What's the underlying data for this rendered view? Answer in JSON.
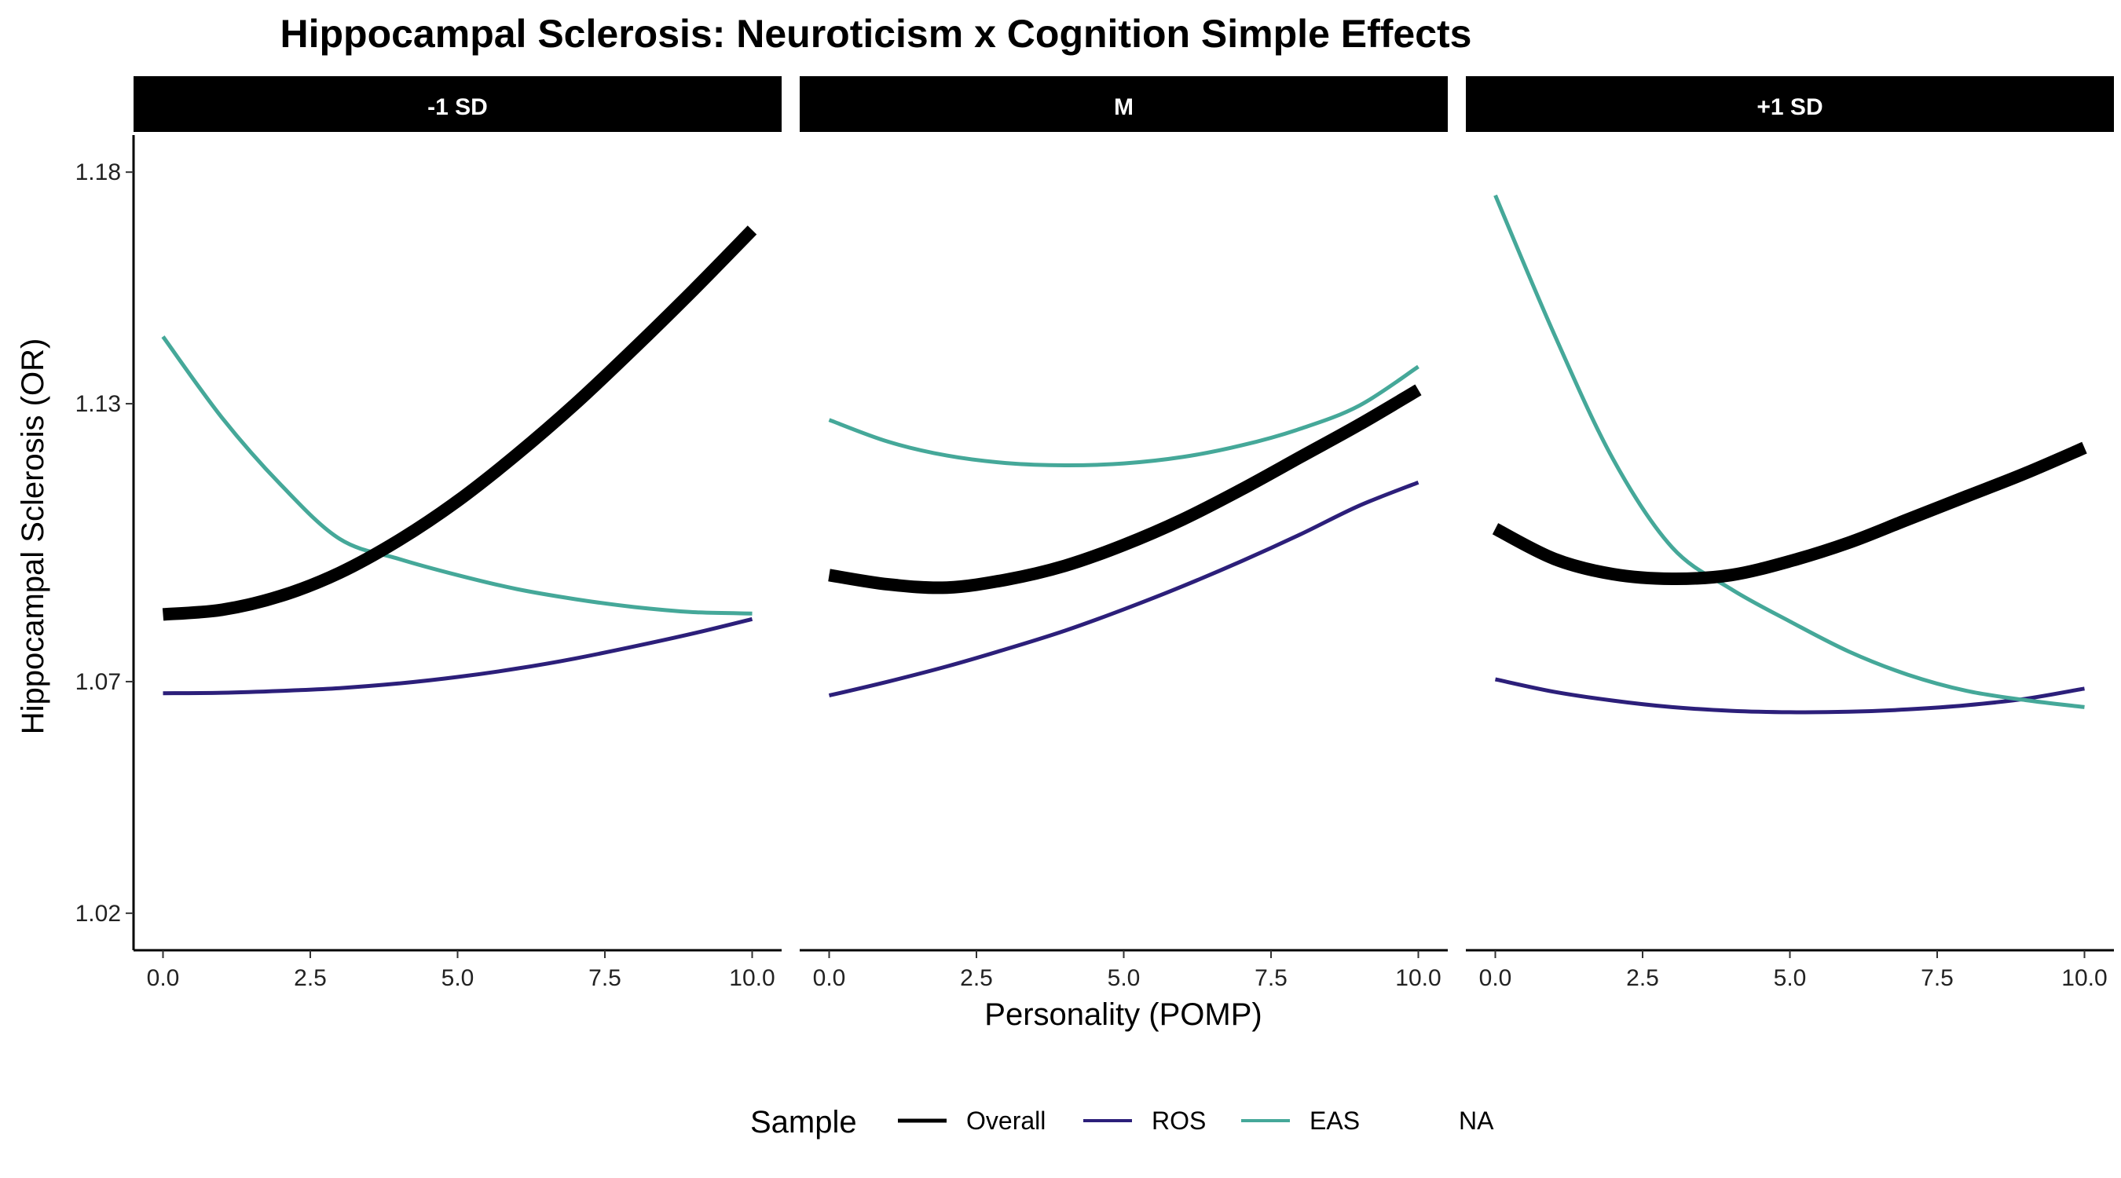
{
  "chart_data": {
    "type": "line",
    "title": "Hippocampal Sclerosis: Neuroticism x Cognition Simple Effects",
    "xlabel": "Personality (POMP)",
    "ylabel": "Hippocampal Sclerosis (OR)",
    "xlim": [
      -0.5,
      10.5
    ],
    "ylim": [
      1.012,
      1.188
    ],
    "x_ticks": [
      0,
      2.5,
      5,
      7.5,
      10
    ],
    "x_tick_labels": [
      "0.0",
      "2.5",
      "5.0",
      "7.5",
      "10.0"
    ],
    "y_ticks": [
      1.02,
      1.07,
      1.13,
      1.18
    ],
    "y_tick_labels": [
      "1.02",
      "1.07",
      "1.13",
      "1.18"
    ],
    "grid": false,
    "legend": {
      "title": "Sample",
      "position": "bottom",
      "entries": [
        {
          "label": "Overall",
          "color": "#000000"
        },
        {
          "label": "ROS",
          "color": "#2c1f7a"
        },
        {
          "label": "EAS",
          "color": "#45a899"
        },
        {
          "label": "NA",
          "color": null
        }
      ]
    },
    "x": [
      0,
      1,
      2,
      3,
      4,
      5,
      6,
      7,
      8,
      9,
      10
    ],
    "panels": [
      {
        "label": "-1 SD",
        "series": [
          {
            "name": "Overall",
            "color": "#000000",
            "values": [
              1.0845,
              1.0855,
              1.0885,
              1.0935,
              1.1005,
              1.109,
              1.119,
              1.13,
              1.142,
              1.1545,
              1.1675
            ]
          },
          {
            "name": "ROS",
            "color": "#2c1f7a",
            "values": [
              1.0675,
              1.0676,
              1.068,
              1.0686,
              1.0696,
              1.071,
              1.0728,
              1.075,
              1.0776,
              1.0804,
              1.0835
            ]
          },
          {
            "name": "EAS",
            "color": "#45a899",
            "values": [
              1.1445,
              1.127,
              1.1125,
              1.1008,
              1.0965,
              1.093,
              1.09,
              1.0878,
              1.0861,
              1.085,
              1.0847
            ]
          }
        ]
      },
      {
        "label": "M",
        "series": [
          {
            "name": "Overall",
            "color": "#000000",
            "values": [
              1.093,
              1.091,
              1.0903,
              1.092,
              1.095,
              1.0995,
              1.105,
              1.1115,
              1.1185,
              1.1255,
              1.133
            ]
          },
          {
            "name": "ROS",
            "color": "#2c1f7a",
            "values": [
              1.067,
              1.07,
              1.0733,
              1.077,
              1.081,
              1.0856,
              1.0906,
              1.096,
              1.1018,
              1.108,
              1.113
            ]
          },
          {
            "name": "EAS",
            "color": "#45a899",
            "values": [
              1.1265,
              1.1218,
              1.1188,
              1.1172,
              1.1167,
              1.1171,
              1.1185,
              1.121,
              1.1246,
              1.1296,
              1.138
            ]
          }
        ]
      },
      {
        "label": "+1 SD",
        "series": [
          {
            "name": "Overall",
            "color": "#000000",
            "values": [
              1.103,
              1.0965,
              1.0932,
              1.0922,
              1.093,
              1.096,
              1.1,
              1.105,
              1.11,
              1.115,
              1.1205
            ]
          },
          {
            "name": "ROS",
            "color": "#2c1f7a",
            "values": [
              1.0705,
              1.0678,
              1.0659,
              1.0645,
              1.0637,
              1.0634,
              1.0635,
              1.064,
              1.0649,
              1.0663,
              1.0685
            ]
          },
          {
            "name": "EAS",
            "color": "#45a899",
            "values": [
              1.175,
              1.145,
              1.118,
              1.099,
              1.09,
              1.083,
              1.0765,
              1.0715,
              1.068,
              1.066,
              1.0645
            ]
          }
        ]
      }
    ]
  }
}
